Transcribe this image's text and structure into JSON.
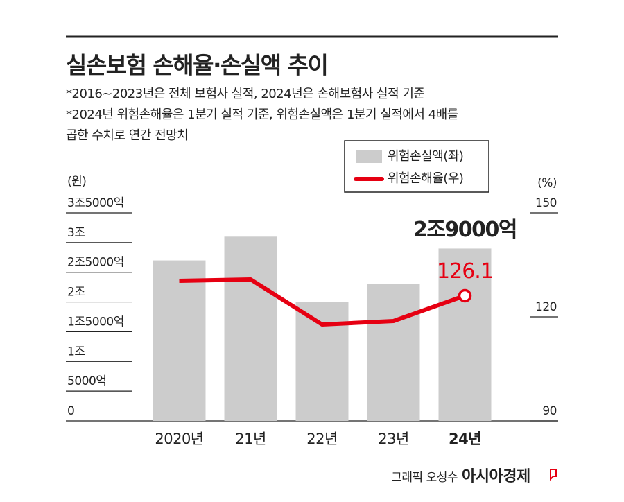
{
  "chart_data": {
    "type": "bar_line",
    "title": "실손보험 손해율·손실액 추이",
    "notes": [
      "*2016~2023년은 전체 보험사 실적, 2024년은 손해보험사 실적 기준",
      "*2024년 위험손해율은 1분기 실적 기준, 위험손실액은 1분기 실적에서 4배를",
      "곱한 수치로 연간 전망치"
    ],
    "y_unit": "(원)",
    "y2_unit": "(%)",
    "categories": [
      "2020년",
      "21년",
      "22년",
      "23년",
      "24년"
    ],
    "series": [
      {
        "name": "위험손실액(좌)",
        "type": "bar",
        "color": "#cccccc",
        "values": [
          2700000000000,
          3100000000000,
          2000000000000,
          2300000000000,
          2900000000000
        ],
        "value_labels": [
          null,
          null,
          null,
          null,
          "2조9000억"
        ]
      },
      {
        "name": "위험손해율(우)",
        "type": "line",
        "axis": "y2",
        "color": "#e60012",
        "values": [
          130.4,
          130.8,
          117.8,
          118.8,
          126.1
        ],
        "value_labels": [
          null,
          null,
          null,
          null,
          "126.1"
        ]
      }
    ],
    "ylim": [
      0,
      3500000000000
    ],
    "yticks": [
      0,
      {
        "value": 500000000000,
        "label": "5000억"
      },
      {
        "value": 1000000000000,
        "label": "1조"
      },
      {
        "value": 1500000000000,
        "label": "1조5000억"
      },
      {
        "value": 2000000000000,
        "label": "2조"
      },
      {
        "value": 2500000000000,
        "label": "2조5000억"
      },
      {
        "value": 3000000000000,
        "label": "3조"
      },
      {
        "value": 3500000000000,
        "label": "3조5000억"
      }
    ],
    "y2lim": [
      90,
      150
    ],
    "y2ticks": [
      90,
      120,
      150
    ],
    "credit": "그래픽 오성수",
    "publisher": "아시아경제"
  }
}
